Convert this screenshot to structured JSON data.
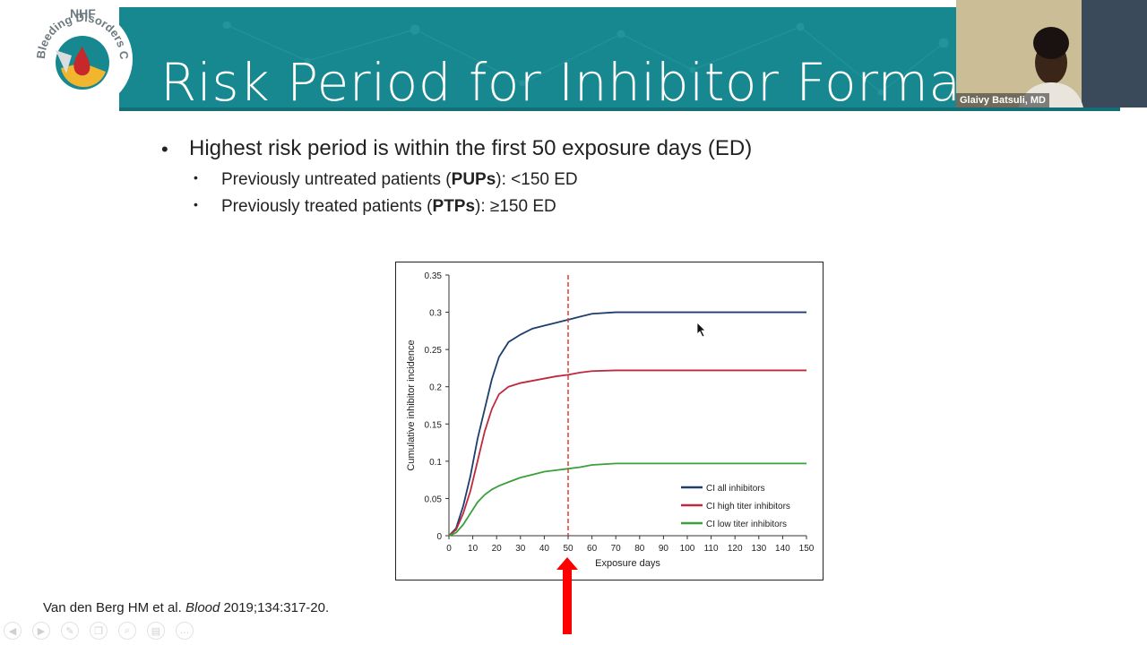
{
  "logo": {
    "org": "NHF",
    "conference": "Bleeding Disorders Conference"
  },
  "slide": {
    "title": "Risk Period for Inhibitor Formation",
    "bullet_main": "Highest risk period is within the first 50 exposure days (ED)",
    "sub_bullets": [
      {
        "before": "Previously untreated patients (",
        "bold": "PUPs",
        "after": "): <150 ED"
      },
      {
        "before": "Previously treated patients (",
        "bold": "PTPs",
        "after": "): ≥150 ED"
      }
    ],
    "citation": {
      "authors": "Van den Berg HM et al. ",
      "journal": "Blood",
      "ref": " 2019;134:317-20."
    }
  },
  "webcam": {
    "speaker_name": "Glaivy Batsuli, MD"
  },
  "toolbar_icons": [
    "prev-icon",
    "next-icon",
    "pen-icon",
    "copy-icon",
    "zoom-icon",
    "subtitles-icon",
    "more-icon"
  ],
  "chart_data": {
    "type": "line",
    "xlabel": "Exposure days",
    "ylabel": "Cumulative inhibitor incidence",
    "xlim": [
      0,
      150
    ],
    "ylim": [
      0,
      0.35
    ],
    "xticks": [
      0,
      10,
      20,
      30,
      40,
      50,
      60,
      70,
      80,
      90,
      100,
      110,
      120,
      130,
      140,
      150
    ],
    "yticks": [
      0,
      0.05,
      0.1,
      0.15,
      0.2,
      0.25,
      0.3,
      0.35
    ],
    "ytick_labels": [
      "0",
      "0.05",
      "0.1",
      "0.15",
      "0.2",
      "0.25",
      "0.3",
      "0.35"
    ],
    "vline": {
      "x": 50,
      "color": "#e53a2e",
      "style": "dashed"
    },
    "legend_position": "bottom-right",
    "series": [
      {
        "name": "CI all inhibitors",
        "color": "#1d3e6e",
        "x": [
          0,
          3,
          6,
          9,
          12,
          15,
          18,
          21,
          25,
          30,
          35,
          40,
          45,
          50,
          55,
          60,
          70,
          80,
          100,
          150
        ],
        "y": [
          0,
          0.01,
          0.04,
          0.08,
          0.13,
          0.17,
          0.21,
          0.24,
          0.26,
          0.27,
          0.278,
          0.282,
          0.286,
          0.29,
          0.294,
          0.298,
          0.3,
          0.3,
          0.3,
          0.3
        ]
      },
      {
        "name": "CI high titer inhibitors",
        "color": "#c0283e",
        "x": [
          0,
          3,
          6,
          9,
          12,
          15,
          18,
          21,
          25,
          30,
          35,
          40,
          45,
          50,
          55,
          60,
          70,
          80,
          100,
          150
        ],
        "y": [
          0,
          0.008,
          0.03,
          0.06,
          0.1,
          0.14,
          0.17,
          0.19,
          0.2,
          0.205,
          0.208,
          0.211,
          0.214,
          0.216,
          0.219,
          0.221,
          0.222,
          0.222,
          0.222,
          0.222
        ]
      },
      {
        "name": "CI low titer inhibitors",
        "color": "#3aa03a",
        "x": [
          0,
          3,
          6,
          9,
          12,
          15,
          18,
          21,
          25,
          30,
          35,
          40,
          45,
          50,
          55,
          60,
          70,
          80,
          100,
          150
        ],
        "y": [
          0,
          0.004,
          0.015,
          0.03,
          0.045,
          0.055,
          0.062,
          0.067,
          0.072,
          0.078,
          0.082,
          0.086,
          0.088,
          0.09,
          0.092,
          0.095,
          0.097,
          0.097,
          0.097,
          0.097
        ]
      }
    ]
  }
}
